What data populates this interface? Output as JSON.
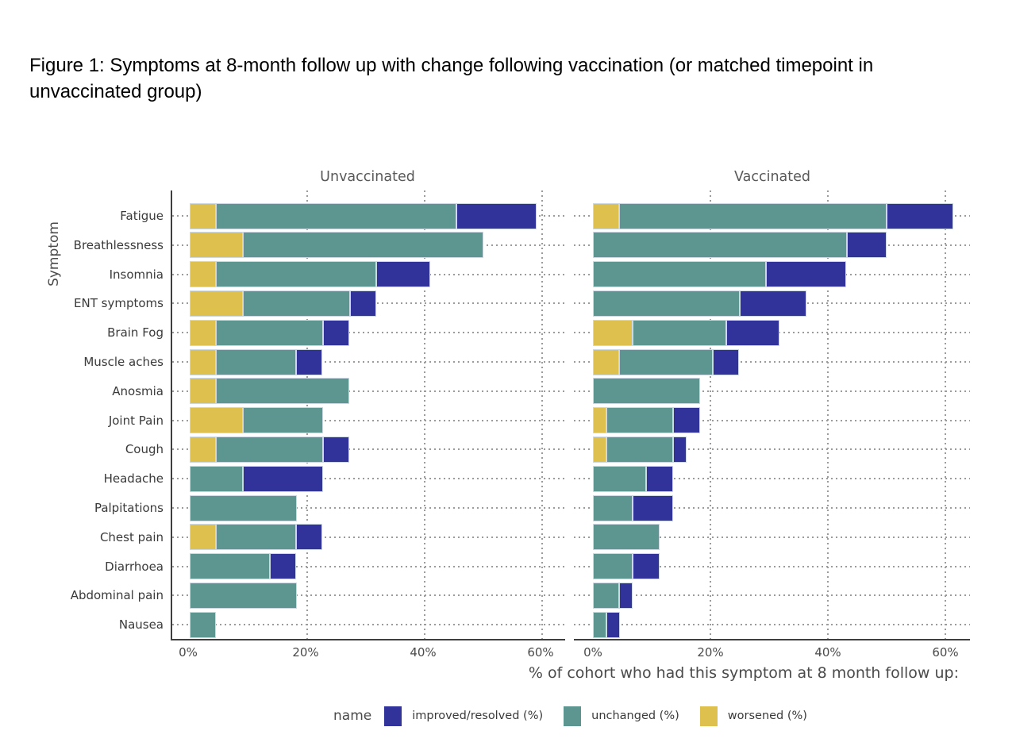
{
  "figure_title": "Figure 1: Symptoms at 8-month follow up with change following vaccination (or matched timepoint in unvaccinated group)",
  "chart_data": {
    "type": "bar",
    "orientation": "horizontal",
    "stacked": true,
    "facets": [
      "Unvaccinated",
      "Vaccinated"
    ],
    "categories": [
      "Fatigue",
      "Breathlessness",
      "Insomnia",
      "ENT symptoms",
      "Brain Fog",
      "Muscle aches",
      "Anosmia",
      "Joint Pain",
      "Cough",
      "Headache",
      "Palpitations",
      "Chest pain",
      "Diarrhoea",
      "Abdominal pain",
      "Nausea"
    ],
    "ylabel": "Symptom",
    "xlabel": "% of cohort who had this symptom at 8 month follow up:",
    "x_tick_labels": [
      "0%",
      "20%",
      "40%",
      "60%"
    ],
    "x_tick_values": [
      0,
      20,
      40,
      60
    ],
    "xlim": [
      0,
      64.2
    ],
    "grid": "dotted",
    "legend_position": "bottom",
    "legend_title": "name",
    "stack_order_left_to_right": [
      "worsened (%)",
      "unchanged (%)",
      "improved/resolved (%)"
    ],
    "series": [
      {
        "name": "improved/resolved (%)",
        "color": "#32329b",
        "values": {
          "Unvaccinated": [
            13.6,
            0,
            9.1,
            4.5,
            4.5,
            4.5,
            0,
            0,
            4.5,
            13.6,
            0,
            4.5,
            4.5,
            0,
            0
          ],
          "Vaccinated": [
            11.4,
            6.8,
            13.6,
            11.4,
            9.1,
            4.5,
            0,
            4.5,
            2.3,
            4.5,
            6.8,
            0,
            4.5,
            2.3,
            2.3
          ]
        }
      },
      {
        "name": "unchanged (%)",
        "color": "#5d9591",
        "values": {
          "Unvaccinated": [
            40.9,
            40.9,
            27.3,
            18.2,
            18.2,
            13.6,
            22.7,
            13.6,
            18.2,
            9.1,
            18.2,
            13.6,
            13.6,
            18.2,
            4.5
          ],
          "Vaccinated": [
            45.5,
            43.2,
            29.5,
            25.0,
            15.9,
            15.9,
            18.2,
            11.4,
            11.4,
            9.1,
            6.8,
            11.4,
            6.8,
            4.5,
            2.3
          ]
        }
      },
      {
        "name": "worsened (%)",
        "color": "#ddc04e",
        "values": {
          "Unvaccinated": [
            4.5,
            9.1,
            4.5,
            9.1,
            4.5,
            4.5,
            4.5,
            9.1,
            4.5,
            0,
            0,
            4.5,
            0,
            0,
            0
          ],
          "Vaccinated": [
            4.5,
            0,
            0,
            0,
            6.8,
            4.5,
            0,
            2.3,
            2.3,
            0,
            0,
            0,
            0,
            0,
            0
          ]
        }
      }
    ]
  }
}
